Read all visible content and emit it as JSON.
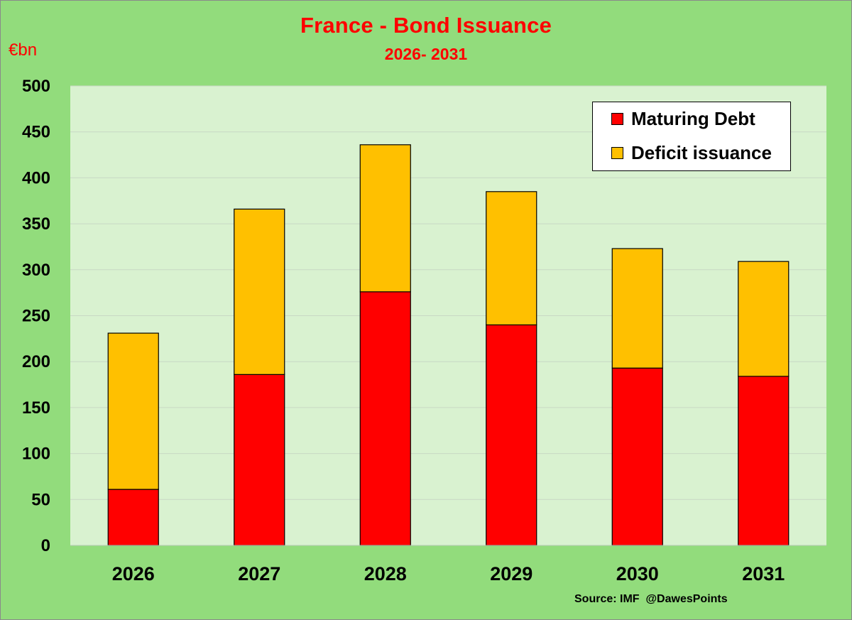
{
  "chart_data": {
    "type": "bar",
    "stacked": true,
    "title": "France - Bond Issuance",
    "subtitle": "2026- 2031",
    "ylabel": "€bn",
    "ylim": [
      0,
      500
    ],
    "yticks": [
      0,
      50,
      100,
      150,
      200,
      250,
      300,
      350,
      400,
      450,
      500
    ],
    "grid": true,
    "legend_position": "top-right",
    "categories": [
      "2026",
      "2027",
      "2028",
      "2029",
      "2030",
      "2031"
    ],
    "series": [
      {
        "name": "Maturing Debt",
        "color": "#ff0000",
        "values": [
          61,
          186,
          276,
          240,
          193,
          184
        ]
      },
      {
        "name": "Deficit issuance",
        "color": "#ffc000",
        "values": [
          170,
          180,
          160,
          145,
          130,
          125
        ]
      }
    ],
    "source": "Source: IMF  @DawesPoints"
  },
  "colors": {
    "background": "#92dc7c",
    "plot_area": "#d9f2d0",
    "text_accent": "#ff0000"
  }
}
